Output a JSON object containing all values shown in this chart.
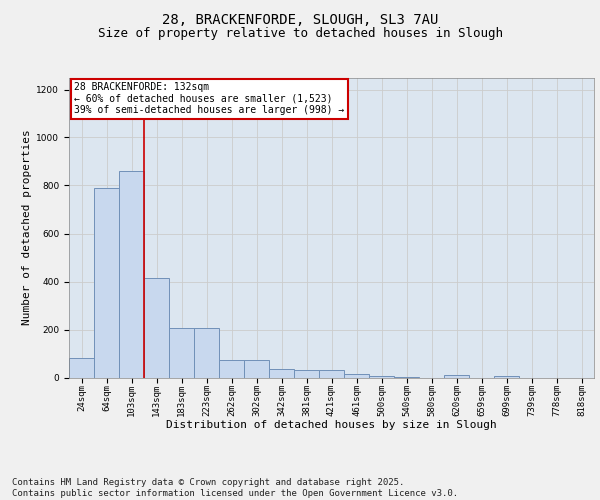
{
  "title1": "28, BRACKENFORDE, SLOUGH, SL3 7AU",
  "title2": "Size of property relative to detached houses in Slough",
  "xlabel": "Distribution of detached houses by size in Slough",
  "ylabel": "Number of detached properties",
  "categories": [
    "24sqm",
    "64sqm",
    "103sqm",
    "143sqm",
    "183sqm",
    "223sqm",
    "262sqm",
    "302sqm",
    "342sqm",
    "381sqm",
    "421sqm",
    "461sqm",
    "500sqm",
    "540sqm",
    "580sqm",
    "620sqm",
    "659sqm",
    "699sqm",
    "739sqm",
    "778sqm",
    "818sqm"
  ],
  "values": [
    80,
    790,
    860,
    415,
    205,
    205,
    75,
    75,
    35,
    30,
    30,
    15,
    5,
    2,
    0,
    10,
    0,
    5,
    0,
    0,
    0
  ],
  "bar_color": "#c8d8ee",
  "bar_edgecolor": "#7090b8",
  "bar_linewidth": 0.7,
  "marker_line_color": "#cc0000",
  "annotation_text1": "28 BRACKENFORDE: 132sqm",
  "annotation_text2": "← 60% of detached houses are smaller (1,523)",
  "annotation_text3": "39% of semi-detached houses are larger (998) →",
  "annotation_box_facecolor": "#ffffff",
  "annotation_box_edgecolor": "#cc0000",
  "ylim": [
    0,
    1250
  ],
  "yticks": [
    0,
    200,
    400,
    600,
    800,
    1000,
    1200
  ],
  "grid_color": "#cccccc",
  "plot_bg_color": "#dce6f0",
  "fig_bg_color": "#f0f0f0",
  "footer_text": "Contains HM Land Registry data © Crown copyright and database right 2025.\nContains public sector information licensed under the Open Government Licence v3.0.",
  "title_fontsize": 10,
  "subtitle_fontsize": 9,
  "axis_label_fontsize": 8,
  "tick_fontsize": 6.5,
  "footer_fontsize": 6.5,
  "annotation_fontsize": 7
}
